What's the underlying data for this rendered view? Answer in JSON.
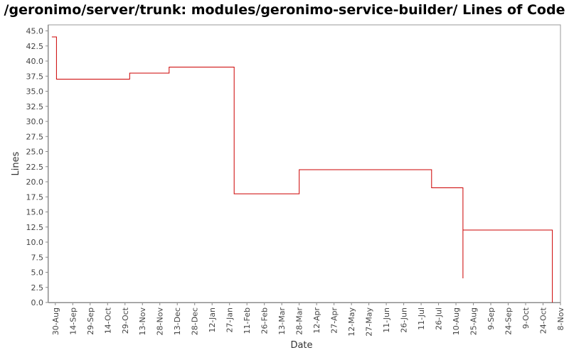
{
  "chart_data": {
    "type": "line",
    "title": "/geronimo/server/trunk: modules/geronimo-service-builder/ Lines of Code",
    "xlabel": "Date",
    "ylabel": "Lines",
    "ylim": [
      0,
      46
    ],
    "yticks": [
      "0.0",
      "2.5",
      "5.0",
      "7.5",
      "10.0",
      "12.5",
      "15.0",
      "17.5",
      "20.0",
      "22.5",
      "25.0",
      "27.5",
      "30.0",
      "32.5",
      "35.0",
      "37.5",
      "40.0",
      "42.5",
      "45.0"
    ],
    "xlim": [
      "2005-08-24",
      "2006-11-08"
    ],
    "xticks": [
      {
        "date": "2005-08-30",
        "label": "30-Aug"
      },
      {
        "date": "2005-09-14",
        "label": "14-Sep"
      },
      {
        "date": "2005-09-29",
        "label": "29-Sep"
      },
      {
        "date": "2005-10-14",
        "label": "14-Oct"
      },
      {
        "date": "2005-10-29",
        "label": "29-Oct"
      },
      {
        "date": "2005-11-13",
        "label": "13-Nov"
      },
      {
        "date": "2005-11-28",
        "label": "28-Nov"
      },
      {
        "date": "2005-12-13",
        "label": "13-Dec"
      },
      {
        "date": "2005-12-28",
        "label": "28-Dec"
      },
      {
        "date": "2006-01-12",
        "label": "12-Jan"
      },
      {
        "date": "2006-01-27",
        "label": "27-Jan"
      },
      {
        "date": "2006-02-11",
        "label": "11-Feb"
      },
      {
        "date": "2006-02-26",
        "label": "26-Feb"
      },
      {
        "date": "2006-03-13",
        "label": "13-Mar"
      },
      {
        "date": "2006-03-28",
        "label": "28-Mar"
      },
      {
        "date": "2006-04-12",
        "label": "12-Apr"
      },
      {
        "date": "2006-04-27",
        "label": "27-Apr"
      },
      {
        "date": "2006-05-12",
        "label": "12-May"
      },
      {
        "date": "2006-05-27",
        "label": "27-May"
      },
      {
        "date": "2006-06-11",
        "label": "11-Jun"
      },
      {
        "date": "2006-06-26",
        "label": "26-Jun"
      },
      {
        "date": "2006-07-11",
        "label": "11-Jul"
      },
      {
        "date": "2006-07-26",
        "label": "26-Jul"
      },
      {
        "date": "2006-08-10",
        "label": "10-Aug"
      },
      {
        "date": "2006-08-25",
        "label": "25-Aug"
      },
      {
        "date": "2006-09-09",
        "label": "9-Sep"
      },
      {
        "date": "2006-09-24",
        "label": "24-Sep"
      },
      {
        "date": "2006-10-09",
        "label": "9-Oct"
      },
      {
        "date": "2006-10-24",
        "label": "24-Oct"
      },
      {
        "date": "2006-11-08",
        "label": "8-Nov"
      }
    ],
    "series": [
      {
        "color": "#cc0000",
        "step": true,
        "points": [
          {
            "x": "2005-08-27",
            "y": 44
          },
          {
            "x": "2005-08-31",
            "y": 44
          },
          {
            "x": "2005-08-31",
            "y": 37
          },
          {
            "x": "2005-11-02",
            "y": 37
          },
          {
            "x": "2005-11-02",
            "y": 38
          },
          {
            "x": "2005-12-06",
            "y": 38
          },
          {
            "x": "2005-12-06",
            "y": 39
          },
          {
            "x": "2006-01-31",
            "y": 39
          },
          {
            "x": "2006-01-31",
            "y": 18
          },
          {
            "x": "2006-03-28",
            "y": 18
          },
          {
            "x": "2006-03-28",
            "y": 22
          },
          {
            "x": "2006-07-20",
            "y": 22
          },
          {
            "x": "2006-07-20",
            "y": 19
          },
          {
            "x": "2006-08-16",
            "y": 19
          },
          {
            "x": "2006-08-16",
            "y": 4
          },
          {
            "x": "2006-08-16",
            "y": 12
          },
          {
            "x": "2006-11-01",
            "y": 12
          },
          {
            "x": "2006-11-01",
            "y": 0
          }
        ]
      }
    ],
    "grid": false
  },
  "colors": {
    "axis": "#888888",
    "plot_border": "#999999",
    "line": "#cc0000"
  }
}
